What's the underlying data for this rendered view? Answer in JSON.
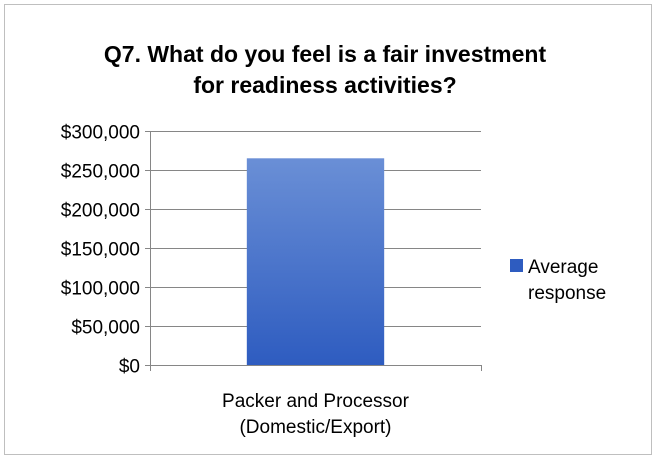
{
  "chart_data": {
    "type": "bar",
    "title_lines": [
      "Q7. What do you feel is a fair investment",
      "for readiness activities?"
    ],
    "categories": [
      "Packer and Processor (Domestic/Export)"
    ],
    "category_label_lines": [
      "Packer and Processor",
      "(Domestic/Export)"
    ],
    "series": [
      {
        "name": "Average response",
        "values": [
          265000
        ]
      }
    ],
    "legend_label_lines": [
      "Average",
      "response"
    ],
    "ylim": [
      0,
      300000
    ],
    "yticks": [
      0,
      50000,
      100000,
      150000,
      200000,
      250000,
      300000
    ],
    "ytick_labels": [
      "$0",
      "$50,000",
      "$100,000",
      "$150,000",
      "$200,000",
      "$250,000",
      "$300,000"
    ],
    "grid": true,
    "legend_position": "right",
    "colors": {
      "bar_top": "#6a8fd6",
      "bar_bottom": "#2e5cc0",
      "grid": "#868686",
      "border": "#bfbfbf"
    }
  }
}
